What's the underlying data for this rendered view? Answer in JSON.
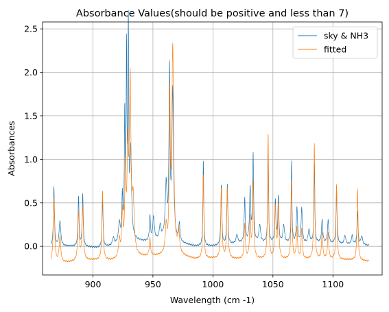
{
  "chart_data": {
    "type": "line",
    "title": "Absorbance Values(should be positive and less than 7)",
    "xlabel": "Wavelength (cm -1)",
    "ylabel": "Absorbances",
    "xlim": [
      858,
      1141
    ],
    "ylim": [
      -0.33,
      2.58
    ],
    "xticks": [
      900,
      950,
      1000,
      1050,
      1100
    ],
    "yticks": [
      0.0,
      0.5,
      1.0,
      1.5,
      2.0,
      2.5
    ],
    "xtick_labels": [
      "900",
      "950",
      "1000",
      "1050",
      "1100"
    ],
    "ytick_labels": [
      "0.0",
      "0.5",
      "1.0",
      "1.5",
      "2.0",
      "2.5"
    ],
    "grid": true,
    "legend_position": "top-right",
    "x_range": [
      865,
      1130
    ],
    "series": [
      {
        "name": "sky & NH3",
        "color": "#1f77b4",
        "baseline": [
          [
            865,
            0.0
          ],
          [
            880,
            0.0
          ],
          [
            895,
            -0.01
          ],
          [
            905,
            -0.02
          ],
          [
            915,
            0.0
          ],
          [
            925,
            0.04
          ],
          [
            935,
            0.06
          ],
          [
            945,
            0.05
          ],
          [
            955,
            0.07
          ],
          [
            960,
            0.1
          ],
          [
            970,
            0.04
          ],
          [
            985,
            0.0
          ],
          [
            1000,
            0.0
          ],
          [
            1015,
            0.02
          ],
          [
            1030,
            0.05
          ],
          [
            1040,
            0.04
          ],
          [
            1055,
            0.04
          ],
          [
            1070,
            0.03
          ],
          [
            1090,
            0.04
          ],
          [
            1110,
            0.02
          ],
          [
            1130,
            0.01
          ]
        ],
        "peaks": [
          [
            867.5,
            0.68,
            0.5
          ],
          [
            872.5,
            0.29,
            0.8
          ],
          [
            888,
            0.57,
            0.5
          ],
          [
            891.5,
            0.6,
            0.5
          ],
          [
            908,
            0.55,
            0.5
          ],
          [
            917,
            0.08,
            0.8
          ],
          [
            922,
            0.22,
            0.8
          ],
          [
            924.5,
            0.5,
            0.5
          ],
          [
            926.5,
            1.38,
            0.4
          ],
          [
            928,
            2.08,
            0.4
          ],
          [
            929.5,
            2.4,
            0.4
          ],
          [
            931.5,
            1.0,
            0.8
          ],
          [
            947.5,
            0.28,
            0.5
          ],
          [
            950.5,
            0.27,
            0.8
          ],
          [
            956,
            0.15,
            0.8
          ],
          [
            961,
            0.6,
            0.8
          ],
          [
            963.8,
            1.88,
            0.5
          ],
          [
            966.5,
            1.7,
            0.8
          ],
          [
            972,
            0.2,
            0.6
          ],
          [
            992,
            0.98,
            0.4
          ],
          [
            1007,
            0.69,
            0.5
          ],
          [
            1012,
            0.69,
            0.5
          ],
          [
            1020,
            0.1,
            0.8
          ],
          [
            1026.5,
            0.5,
            0.5
          ],
          [
            1031,
            0.6,
            0.6
          ],
          [
            1033.5,
            1.0,
            0.5
          ],
          [
            1039,
            0.2,
            0.8
          ],
          [
            1046,
            1.07,
            0.4
          ],
          [
            1052,
            0.48,
            0.5
          ],
          [
            1054.5,
            0.52,
            0.5
          ],
          [
            1059,
            0.2,
            0.8
          ],
          [
            1065.5,
            0.93,
            0.4
          ],
          [
            1070,
            0.4,
            0.6
          ],
          [
            1074,
            0.4,
            0.6
          ],
          [
            1080,
            0.15,
            0.8
          ],
          [
            1084.5,
            0.9,
            0.4
          ],
          [
            1091,
            0.26,
            0.6
          ],
          [
            1096,
            0.26,
            0.6
          ],
          [
            1103,
            0.63,
            0.5
          ],
          [
            1110,
            0.1,
            0.8
          ],
          [
            1116,
            0.1,
            0.8
          ],
          [
            1120.5,
            0.38,
            0.5
          ],
          [
            1124,
            0.1,
            0.8
          ]
        ]
      },
      {
        "name": "fitted",
        "color": "#ff7f0e",
        "baseline": [
          [
            865,
            -0.2
          ],
          [
            885,
            -0.18
          ],
          [
            900,
            -0.16
          ],
          [
            915,
            -0.17
          ],
          [
            930,
            -0.14
          ],
          [
            950,
            -0.12
          ],
          [
            970,
            -0.1
          ],
          [
            985,
            -0.15
          ],
          [
            1000,
            -0.14
          ],
          [
            1020,
            -0.15
          ],
          [
            1040,
            -0.15
          ],
          [
            1060,
            -0.15
          ],
          [
            1080,
            -0.15
          ],
          [
            1100,
            -0.15
          ],
          [
            1120,
            -0.16
          ],
          [
            1130,
            -0.17
          ]
        ],
        "peaks": [
          [
            867.5,
            0.75,
            0.7
          ],
          [
            872.5,
            0.3,
            0.8
          ],
          [
            888,
            0.55,
            0.7
          ],
          [
            891.5,
            0.6,
            0.7
          ],
          [
            908,
            0.8,
            0.6
          ],
          [
            922,
            0.2,
            0.8
          ],
          [
            924.5,
            0.5,
            0.6
          ],
          [
            927,
            0.95,
            0.6
          ],
          [
            929,
            1.1,
            0.7
          ],
          [
            931,
            1.95,
            0.8
          ],
          [
            933.5,
            0.6,
            1.0
          ],
          [
            947.5,
            0.2,
            0.6
          ],
          [
            961,
            0.3,
            0.8
          ],
          [
            964,
            1.7,
            0.5
          ],
          [
            966.5,
            2.35,
            0.9
          ],
          [
            971.5,
            0.25,
            0.8
          ],
          [
            992,
            0.96,
            0.5
          ],
          [
            1007,
            0.8,
            0.6
          ],
          [
            1012,
            0.8,
            0.6
          ],
          [
            1026.5,
            0.4,
            0.6
          ],
          [
            1031,
            0.45,
            0.6
          ],
          [
            1033.5,
            0.9,
            0.6
          ],
          [
            1046,
            1.43,
            0.5
          ],
          [
            1052,
            0.6,
            0.6
          ],
          [
            1054.5,
            0.6,
            0.6
          ],
          [
            1065.5,
            0.9,
            0.5
          ],
          [
            1070,
            0.35,
            0.6
          ],
          [
            1074,
            0.35,
            0.6
          ],
          [
            1084.5,
            1.33,
            0.5
          ],
          [
            1091,
            0.3,
            0.6
          ],
          [
            1096,
            0.3,
            0.6
          ],
          [
            1103,
            0.87,
            0.5
          ],
          [
            1120.5,
            0.82,
            0.5
          ]
        ]
      }
    ]
  }
}
